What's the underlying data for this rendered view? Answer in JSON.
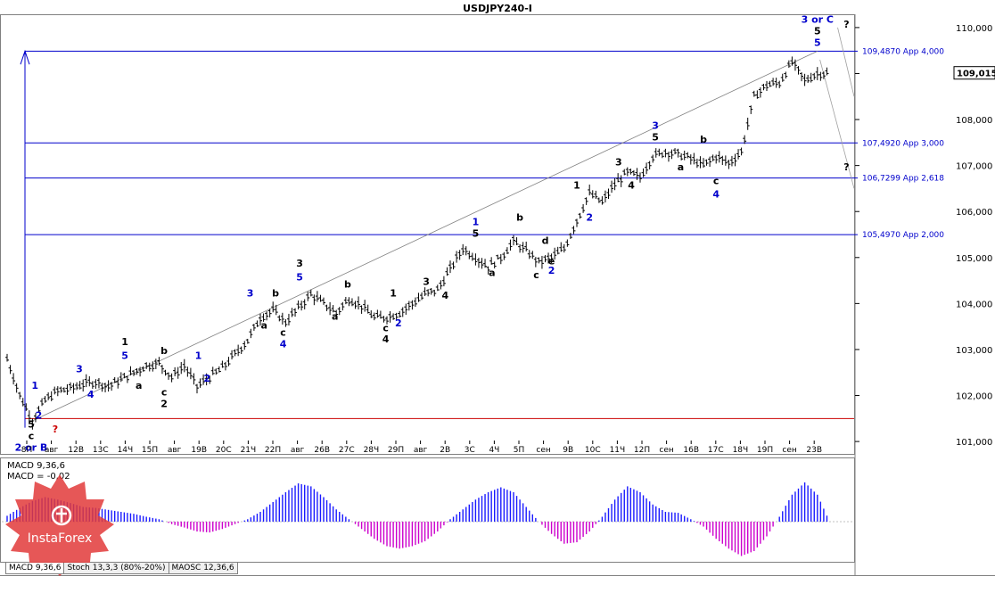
{
  "chart_data": {
    "type": "candlestick",
    "title": "USDJPY240-I",
    "current_price": "109,015",
    "y_ticks": [
      "110,000",
      "109,000",
      "108,000",
      "107,000",
      "106,000",
      "105,000",
      "104,000",
      "103,000",
      "102,000",
      "101,000"
    ],
    "ylim": [
      100.75,
      110.25
    ],
    "x_ticks": [
      "8П",
      "авг",
      "12В",
      "13С",
      "14Ч",
      "15П",
      "авг",
      "19В",
      "20С",
      "21Ч",
      "22П",
      "авг",
      "26В",
      "27С",
      "28Ч",
      "29П",
      "авг",
      "2В",
      "3С",
      "4Ч",
      "5П",
      "сен",
      "9В",
      "10С",
      "11Ч",
      "12П",
      "сен",
      "16В",
      "17С",
      "18Ч",
      "19П",
      "сен",
      "23В"
    ],
    "levels": [
      {
        "label": "109,4870 App 4,000",
        "value": 109.487,
        "color": "#0000cc"
      },
      {
        "label": "107,4920 App 3,000",
        "value": 107.492,
        "color": "#0000cc"
      },
      {
        "label": "106,7299 App 2,618",
        "value": 106.7299,
        "color": "#0000cc"
      },
      {
        "label": "105,4970 App 2,000",
        "value": 105.497,
        "color": "#0000cc"
      },
      {
        "label": "",
        "value": 101.5,
        "color": "#cc0000"
      }
    ],
    "price_path": [
      [
        0,
        102.8
      ],
      [
        1,
        102.0
      ],
      [
        2,
        101.45
      ],
      [
        3,
        101.9
      ],
      [
        4,
        102.1
      ],
      [
        5,
        102.15
      ],
      [
        6,
        102.25
      ],
      [
        7,
        102.3
      ],
      [
        8,
        102.2
      ],
      [
        9,
        102.35
      ],
      [
        10,
        102.5
      ],
      [
        11,
        102.65
      ],
      [
        12,
        102.7
      ],
      [
        13,
        102.4
      ],
      [
        14,
        102.65
      ],
      [
        15,
        102.2
      ],
      [
        16,
        102.4
      ],
      [
        17,
        102.6
      ],
      [
        18,
        102.9
      ],
      [
        19,
        103.2
      ],
      [
        20,
        103.7
      ],
      [
        21,
        103.85
      ],
      [
        22,
        103.6
      ],
      [
        23,
        103.9
      ],
      [
        24,
        104.2
      ],
      [
        25,
        104.0
      ],
      [
        26,
        103.8
      ],
      [
        27,
        104.1
      ],
      [
        28,
        103.95
      ],
      [
        29,
        103.7
      ],
      [
        30,
        103.7
      ],
      [
        31,
        103.8
      ],
      [
        32,
        104.0
      ],
      [
        33,
        104.2
      ],
      [
        34,
        104.3
      ],
      [
        35,
        104.75
      ],
      [
        36,
        105.2
      ],
      [
        37,
        105.0
      ],
      [
        38,
        104.8
      ],
      [
        39,
        105.0
      ],
      [
        40,
        105.35
      ],
      [
        41,
        105.15
      ],
      [
        42,
        104.9
      ],
      [
        43,
        105.0
      ],
      [
        44,
        105.2
      ],
      [
        45,
        105.8
      ],
      [
        46,
        106.4
      ],
      [
        47,
        106.2
      ],
      [
        48,
        106.6
      ],
      [
        49,
        106.85
      ],
      [
        50,
        106.75
      ],
      [
        51,
        107.2
      ],
      [
        52,
        107.3
      ],
      [
        53,
        107.25
      ],
      [
        54,
        107.15
      ],
      [
        55,
        107.0
      ],
      [
        56,
        107.2
      ],
      [
        57,
        107.05
      ],
      [
        58,
        107.3
      ],
      [
        59,
        108.5
      ],
      [
        60,
        108.75
      ],
      [
        61,
        108.8
      ],
      [
        62,
        109.25
      ],
      [
        63,
        108.85
      ],
      [
        64,
        109.0
      ],
      [
        65,
        109.015
      ]
    ],
    "wave_labels": [
      {
        "text": "3 or C",
        "x": 64,
        "y": 110.1,
        "color": "#0000cc"
      },
      {
        "text": "5",
        "x": 64,
        "y": 109.85,
        "color": "#000000"
      },
      {
        "text": "5",
        "x": 64,
        "y": 109.6,
        "color": "#0000cc"
      },
      {
        "text": "?",
        "x": 66.3,
        "y": 110.0,
        "color": "#000000"
      },
      {
        "text": "?",
        "x": 66.3,
        "y": 106.9,
        "color": "#000000"
      },
      {
        "text": "3",
        "x": 51.2,
        "y": 107.8,
        "color": "#0000cc"
      },
      {
        "text": "5",
        "x": 51.2,
        "y": 107.55,
        "color": "#000000"
      },
      {
        "text": "3",
        "x": 48.3,
        "y": 107.0,
        "color": "#000000"
      },
      {
        "text": "4",
        "x": 49.3,
        "y": 106.5,
        "color": "#000000"
      },
      {
        "text": "b",
        "x": 55.0,
        "y": 107.5,
        "color": "#000000"
      },
      {
        "text": "a",
        "x": 53.2,
        "y": 106.9,
        "color": "#000000"
      },
      {
        "text": "c",
        "x": 56.0,
        "y": 106.6,
        "color": "#000000"
      },
      {
        "text": "4",
        "x": 56.0,
        "y": 106.3,
        "color": "#0000cc"
      },
      {
        "text": "1",
        "x": 45.0,
        "y": 106.5,
        "color": "#000000"
      },
      {
        "text": "2",
        "x": 46.0,
        "y": 105.8,
        "color": "#0000cc"
      },
      {
        "text": "1",
        "x": 37.0,
        "y": 105.7,
        "color": "#0000cc"
      },
      {
        "text": "5",
        "x": 37.0,
        "y": 105.45,
        "color": "#000000"
      },
      {
        "text": "b",
        "x": 40.5,
        "y": 105.8,
        "color": "#000000"
      },
      {
        "text": "a",
        "x": 38.3,
        "y": 104.6,
        "color": "#000000"
      },
      {
        "text": "d",
        "x": 42.5,
        "y": 105.3,
        "color": "#000000"
      },
      {
        "text": "e",
        "x": 43.0,
        "y": 104.85,
        "color": "#000000"
      },
      {
        "text": "c",
        "x": 41.8,
        "y": 104.55,
        "color": "#000000"
      },
      {
        "text": "2",
        "x": 43.0,
        "y": 104.65,
        "color": "#0000cc"
      },
      {
        "text": "3",
        "x": 33.1,
        "y": 104.4,
        "color": "#000000"
      },
      {
        "text": "4",
        "x": 34.6,
        "y": 104.1,
        "color": "#000000"
      },
      {
        "text": "1",
        "x": 30.5,
        "y": 104.15,
        "color": "#000000"
      },
      {
        "text": "2",
        "x": 30.9,
        "y": 103.5,
        "color": "#0000cc"
      },
      {
        "text": "c",
        "x": 29.9,
        "y": 103.4,
        "color": "#000000"
      },
      {
        "text": "4",
        "x": 29.9,
        "y": 103.15,
        "color": "#000000"
      },
      {
        "text": "b",
        "x": 26.9,
        "y": 104.35,
        "color": "#000000"
      },
      {
        "text": "a",
        "x": 25.9,
        "y": 103.65,
        "color": "#000000"
      },
      {
        "text": "3",
        "x": 23.1,
        "y": 104.8,
        "color": "#000000"
      },
      {
        "text": "5",
        "x": 23.1,
        "y": 104.5,
        "color": "#0000cc"
      },
      {
        "text": "3",
        "x": 19.2,
        "y": 104.15,
        "color": "#0000cc"
      },
      {
        "text": "b",
        "x": 21.2,
        "y": 104.15,
        "color": "#000000"
      },
      {
        "text": "a",
        "x": 20.3,
        "y": 103.45,
        "color": "#000000"
      },
      {
        "text": "c",
        "x": 21.8,
        "y": 103.3,
        "color": "#000000"
      },
      {
        "text": "4",
        "x": 21.8,
        "y": 103.05,
        "color": "#0000cc"
      },
      {
        "text": "1",
        "x": 9.3,
        "y": 103.1,
        "color": "#000000"
      },
      {
        "text": "5",
        "x": 9.3,
        "y": 102.8,
        "color": "#0000cc"
      },
      {
        "text": "b",
        "x": 12.4,
        "y": 102.9,
        "color": "#000000"
      },
      {
        "text": "a",
        "x": 10.4,
        "y": 102.15,
        "color": "#000000"
      },
      {
        "text": "c",
        "x": 12.4,
        "y": 102.0,
        "color": "#000000"
      },
      {
        "text": "2",
        "x": 12.4,
        "y": 101.75,
        "color": "#000000"
      },
      {
        "text": "1",
        "x": 15.1,
        "y": 102.8,
        "color": "#0000cc"
      },
      {
        "text": "2",
        "x": 15.8,
        "y": 102.3,
        "color": "#0000cc"
      },
      {
        "text": "3",
        "x": 5.7,
        "y": 102.5,
        "color": "#0000cc"
      },
      {
        "text": "4",
        "x": 6.6,
        "y": 101.95,
        "color": "#0000cc"
      },
      {
        "text": "1",
        "x": 2.2,
        "y": 102.15,
        "color": "#0000cc"
      },
      {
        "text": "2",
        "x": 2.5,
        "y": 101.5,
        "color": "#0000cc"
      },
      {
        "text": "5",
        "x": 1.9,
        "y": 101.3,
        "color": "#000000"
      },
      {
        "text": "c",
        "x": 1.9,
        "y": 101.05,
        "color": "#000000"
      },
      {
        "text": "?",
        "x": 3.8,
        "y": 101.2,
        "color": "#cc0000"
      },
      {
        "text": "2 or B",
        "x": 1.9,
        "y": 100.8,
        "color": "#0000cc"
      }
    ],
    "macd": {
      "label": "MACD 9,36,6",
      "value_label": "MACD = -0,02",
      "histogram": [
        0.12,
        0.28,
        0.42,
        0.5,
        0.45,
        0.38,
        0.3,
        0.28,
        0.24,
        0.2,
        0.16,
        0.1,
        0.05,
        -0.05,
        -0.12,
        -0.2,
        -0.22,
        -0.15,
        -0.05,
        0.05,
        0.2,
        0.4,
        0.6,
        0.78,
        0.72,
        0.5,
        0.25,
        0.05,
        -0.15,
        -0.35,
        -0.5,
        -0.55,
        -0.5,
        -0.4,
        -0.2,
        0.05,
        0.25,
        0.45,
        0.6,
        0.7,
        0.6,
        0.3,
        0.0,
        -0.25,
        -0.45,
        -0.42,
        -0.2,
        0.1,
        0.45,
        0.72,
        0.6,
        0.35,
        0.2,
        0.18,
        0.05,
        -0.1,
        -0.35,
        -0.55,
        -0.7,
        -0.6,
        -0.3,
        0.1,
        0.55,
        0.8,
        0.55,
        -0.02
      ]
    },
    "indicator_tabs": [
      "MACD 9,36,6",
      "Stoch 13,3,3 (80%-20%)",
      "MAOSC 12,36,6"
    ]
  }
}
